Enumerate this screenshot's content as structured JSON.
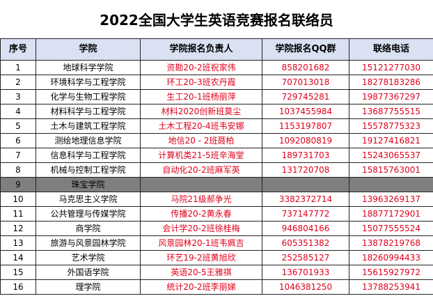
{
  "title": "2022全国大学生英语竞赛报名联络员",
  "headers": [
    "序号",
    "学院",
    "学院报名负责人",
    "学院报名QQ群",
    "联络电话"
  ],
  "rows": [
    {
      "no": "1",
      "college": "地球科学学院",
      "contact": "资勘20-2班祝家伟",
      "qq": "858201682",
      "phone": "15121277030"
    },
    {
      "no": "2",
      "college": "环境科学与工程学院",
      "contact": "环工20-3班农丹霞",
      "qq": "707013018",
      "phone": "18278183286"
    },
    {
      "no": "3",
      "college": "化学与生物工程学院",
      "contact": "生工20-1班杨丽萍",
      "qq": "729745281",
      "phone": "19877367297"
    },
    {
      "no": "4",
      "college": "材料科学与工程学院",
      "contact": "材料2020创新班莫尘",
      "qq": "1037455984",
      "phone": "13687755515"
    },
    {
      "no": "5",
      "college": "土木与建筑工程学院",
      "contact": "土木工程20-4班韦安娜",
      "qq": "1153197807",
      "phone": "15578775323"
    },
    {
      "no": "6",
      "college": "测绘地理信息学院",
      "contact": "地信20 - 2班聂柏",
      "qq": "1092080819",
      "phone": "19127416821"
    },
    {
      "no": "7",
      "college": "信息科学与工程学院",
      "contact": "计算机类21-5班辛海堂",
      "qq": "189731703",
      "phone": "15243065537"
    },
    {
      "no": "8",
      "college": "机械与控制工程学院",
      "contact": "自动化20-2班麻军英",
      "qq": "131720708",
      "phone": "15815763001"
    },
    {
      "no": "9",
      "college": "珠宝学院",
      "contact": "",
      "qq": "",
      "phone": "",
      "dark": true
    },
    {
      "no": "10",
      "college": "马克思主义学院",
      "contact": "马院21级郝争光",
      "qq": "3382372714",
      "phone": "13963269137"
    },
    {
      "no": "11",
      "college": "公共管理与传媒学院",
      "contact": "传播20-2黄永春",
      "qq": "737147772",
      "phone": "18877172901"
    },
    {
      "no": "12",
      "college": "商学院",
      "contact": "会计学20-2班徐桂梅",
      "qq": "946804166",
      "phone": "15077555524"
    },
    {
      "no": "13",
      "college": "旅游与风景园林学院",
      "contact": "风景园林20-1班韦姵吉",
      "qq": "605351382",
      "phone": "13878219768"
    },
    {
      "no": "14",
      "college": "艺术学院",
      "contact": "环艺19-2班黄旭欣",
      "qq": "252585127",
      "phone": "18260994433"
    },
    {
      "no": "15",
      "college": "外国语学院",
      "contact": "英语20-5王雅祺",
      "qq": "136701933",
      "phone": "15615927972"
    },
    {
      "no": "16",
      "college": "理学院",
      "contact": "统计20-2班李丽娣",
      "qq": "1046381250",
      "phone": "13788253941"
    }
  ]
}
